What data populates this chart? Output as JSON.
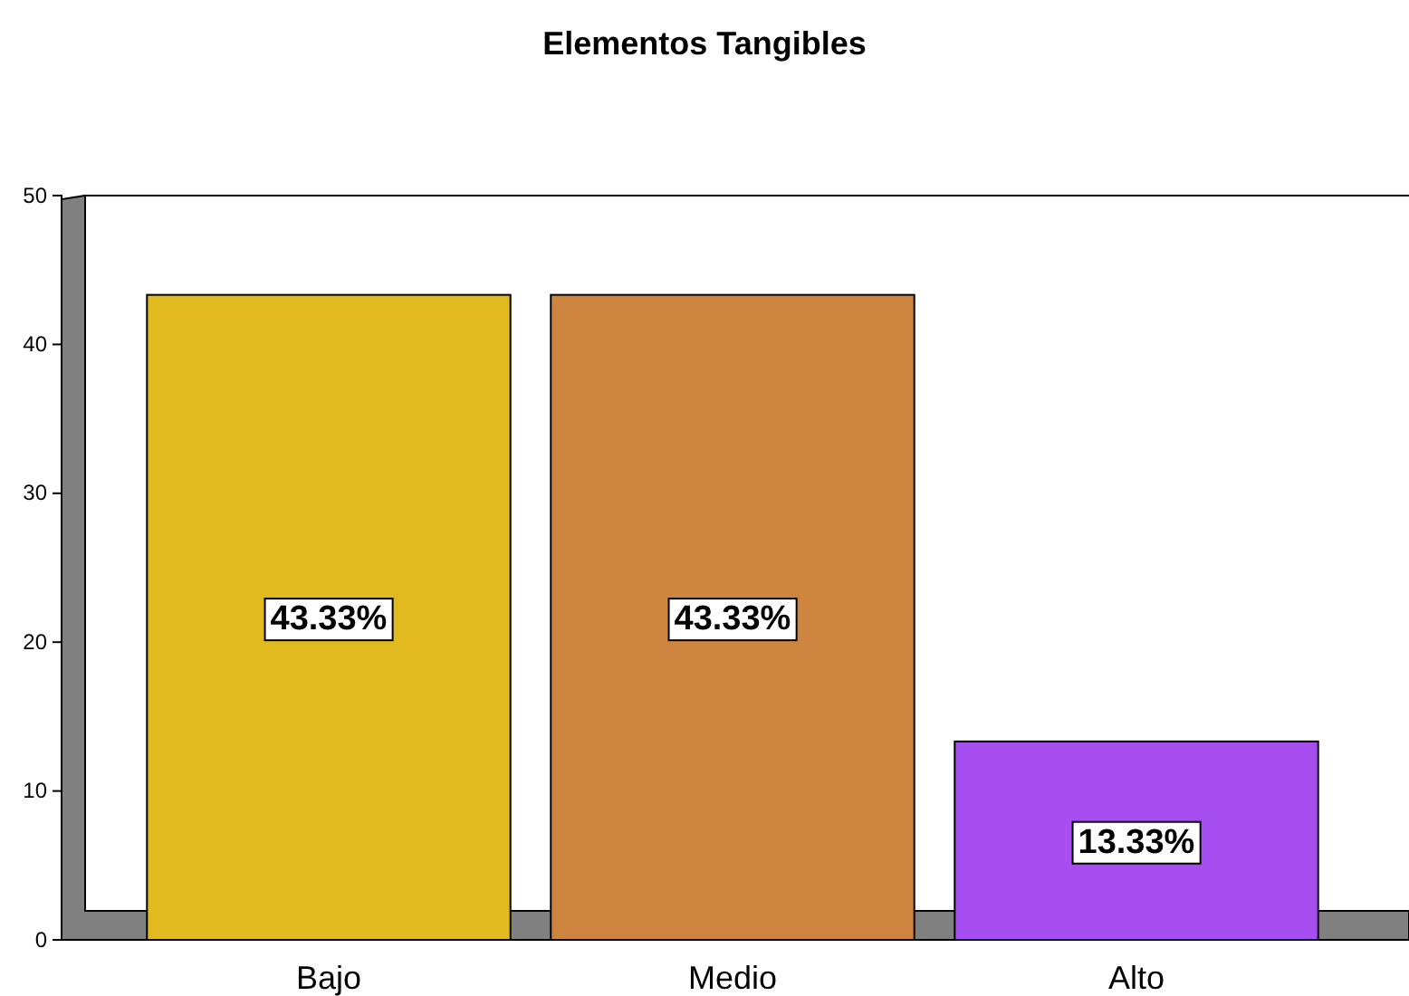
{
  "chart_data": {
    "type": "bar",
    "title": "Elementos Tangibles",
    "categories": [
      "Bajo",
      "Medio",
      "Alto"
    ],
    "values": [
      43.33,
      43.33,
      13.33
    ],
    "colors": [
      "#e0ba1e",
      "#cd853f",
      "#a64ef0"
    ],
    "value_labels": [
      "43.33%",
      "43.33%",
      "13.33%"
    ],
    "ylim": [
      0,
      50
    ],
    "yticks": [
      0,
      10,
      20,
      30,
      40,
      50
    ],
    "grid": false,
    "legend": false
  }
}
